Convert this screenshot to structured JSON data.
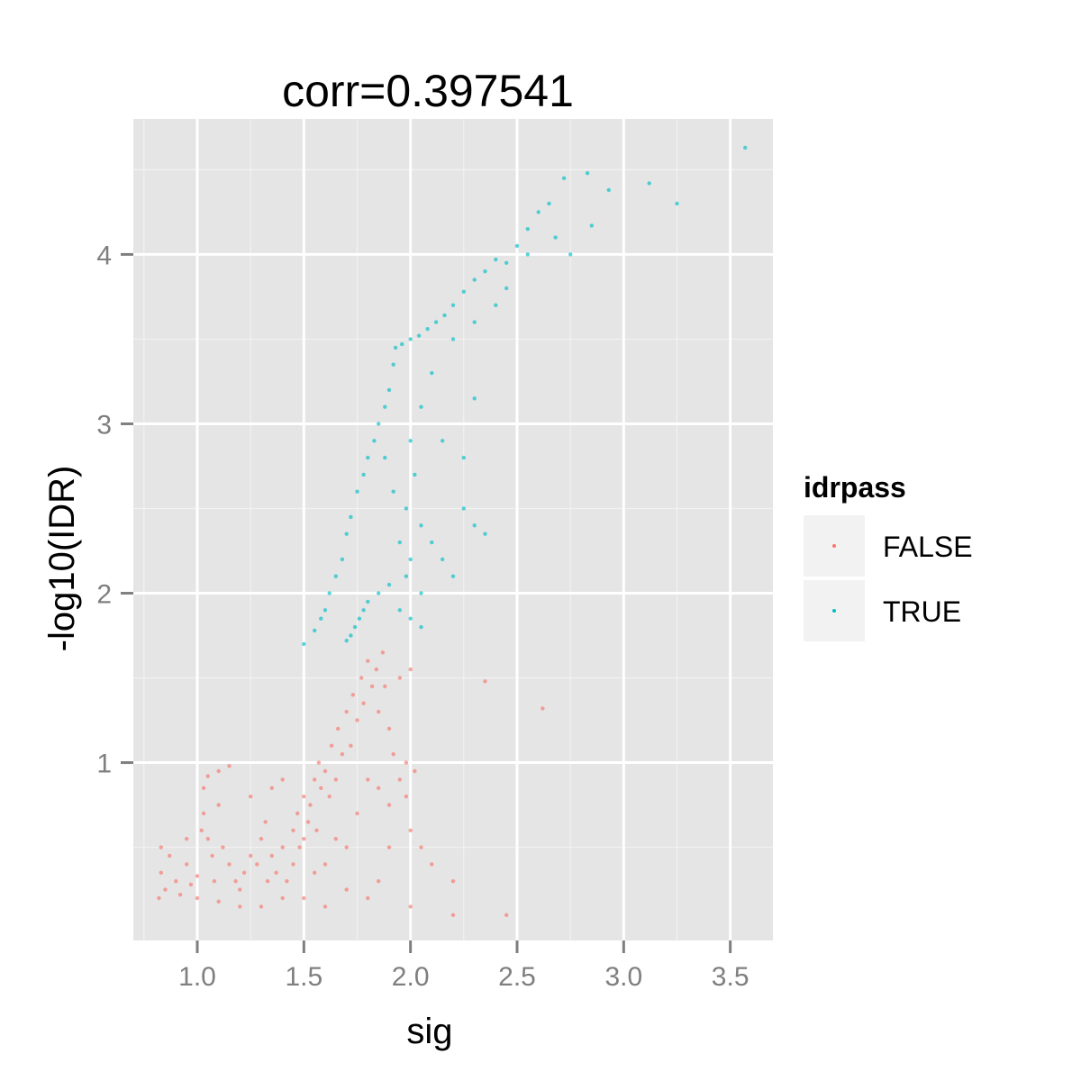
{
  "chart_data": {
    "type": "scatter",
    "title": "corr=0.397541",
    "xlabel": "sig",
    "ylabel": "-log10(IDR)",
    "xlim": [
      0.7,
      3.7
    ],
    "ylim": [
      -0.05,
      4.8
    ],
    "x_ticks": [
      1.0,
      1.5,
      2.0,
      2.5,
      3.0,
      3.5
    ],
    "x_tick_labels": [
      "1.0",
      "1.5",
      "2.0",
      "2.5",
      "3.0",
      "3.5"
    ],
    "y_ticks": [
      1,
      2,
      3,
      4
    ],
    "y_tick_labels": [
      "1",
      "2",
      "3",
      "4"
    ],
    "grid": true,
    "background": "#e5e5e5",
    "legend": {
      "title": "idrpass",
      "placement": "right",
      "entries": [
        {
          "label": "FALSE",
          "color": "#f8766d"
        },
        {
          "label": "TRUE",
          "color": "#00bfc4"
        }
      ]
    },
    "series": [
      {
        "name": "FALSE",
        "color": "#f8766d",
        "points": [
          [
            0.82,
            0.2
          ],
          [
            0.83,
            0.35
          ],
          [
            0.83,
            0.5
          ],
          [
            0.85,
            0.25
          ],
          [
            0.87,
            0.45
          ],
          [
            0.9,
            0.3
          ],
          [
            0.92,
            0.22
          ],
          [
            0.95,
            0.4
          ],
          [
            0.97,
            0.28
          ],
          [
            1.0,
            0.33
          ],
          [
            1.02,
            0.6
          ],
          [
            1.03,
            0.85
          ],
          [
            1.03,
            0.7
          ],
          [
            1.05,
            0.55
          ],
          [
            1.07,
            0.45
          ],
          [
            1.08,
            0.3
          ],
          [
            1.1,
            0.95
          ],
          [
            1.1,
            0.75
          ],
          [
            1.12,
            0.5
          ],
          [
            1.15,
            0.4
          ],
          [
            1.18,
            0.3
          ],
          [
            1.2,
            0.25
          ],
          [
            1.22,
            0.35
          ],
          [
            1.25,
            0.45
          ],
          [
            1.28,
            0.4
          ],
          [
            1.3,
            0.55
          ],
          [
            1.32,
            0.65
          ],
          [
            1.33,
            0.3
          ],
          [
            1.35,
            0.45
          ],
          [
            1.37,
            0.35
          ],
          [
            1.4,
            0.5
          ],
          [
            1.42,
            0.3
          ],
          [
            1.45,
            0.6
          ],
          [
            1.45,
            0.4
          ],
          [
            1.47,
            0.7
          ],
          [
            1.48,
            0.5
          ],
          [
            1.5,
            0.55
          ],
          [
            1.5,
            0.8
          ],
          [
            1.52,
            0.65
          ],
          [
            1.53,
            0.75
          ],
          [
            1.55,
            0.9
          ],
          [
            1.56,
            0.6
          ],
          [
            1.57,
            1.0
          ],
          [
            1.58,
            0.85
          ],
          [
            1.6,
            0.95
          ],
          [
            1.62,
            0.8
          ],
          [
            1.63,
            1.1
          ],
          [
            1.65,
            0.9
          ],
          [
            1.66,
            1.2
          ],
          [
            1.68,
            1.05
          ],
          [
            1.7,
            1.3
          ],
          [
            1.72,
            1.1
          ],
          [
            1.73,
            1.4
          ],
          [
            1.75,
            1.25
          ],
          [
            1.77,
            1.5
          ],
          [
            1.78,
            1.35
          ],
          [
            1.8,
            1.6
          ],
          [
            1.82,
            1.45
          ],
          [
            1.84,
            1.55
          ],
          [
            1.85,
            1.3
          ],
          [
            1.87,
            1.65
          ],
          [
            1.88,
            1.45
          ],
          [
            1.9,
            1.2
          ],
          [
            1.92,
            1.05
          ],
          [
            1.95,
            0.9
          ],
          [
            1.98,
            0.8
          ],
          [
            2.0,
            0.6
          ],
          [
            2.05,
            0.5
          ],
          [
            2.1,
            0.4
          ],
          [
            2.2,
            0.3
          ],
          [
            2.35,
            1.48
          ],
          [
            2.45,
            0.1
          ],
          [
            2.62,
            1.32
          ],
          [
            1.3,
            0.15
          ],
          [
            1.5,
            0.2
          ],
          [
            1.7,
            0.25
          ],
          [
            1.85,
            0.3
          ],
          [
            1.6,
            0.4
          ],
          [
            1.75,
            0.7
          ],
          [
            1.9,
            0.5
          ],
          [
            1.0,
            0.2
          ],
          [
            1.1,
            0.18
          ],
          [
            1.2,
            0.15
          ],
          [
            1.4,
            0.2
          ],
          [
            1.6,
            0.15
          ],
          [
            1.8,
            0.2
          ],
          [
            2.0,
            0.15
          ],
          [
            2.2,
            0.1
          ],
          [
            1.4,
            0.9
          ],
          [
            1.35,
            0.85
          ],
          [
            1.25,
            0.8
          ],
          [
            1.15,
            0.98
          ],
          [
            1.05,
            0.92
          ],
          [
            0.95,
            0.55
          ],
          [
            1.65,
            0.55
          ],
          [
            1.55,
            0.35
          ],
          [
            1.95,
            1.5
          ],
          [
            2.0,
            1.55
          ],
          [
            1.98,
            1.0
          ],
          [
            2.02,
            0.95
          ],
          [
            1.7,
            0.5
          ],
          [
            1.8,
            0.9
          ],
          [
            1.85,
            0.85
          ],
          [
            1.9,
            0.75
          ]
        ]
      },
      {
        "name": "TRUE",
        "color": "#00bfc4",
        "points": [
          [
            1.55,
            1.78
          ],
          [
            1.58,
            1.85
          ],
          [
            1.6,
            1.9
          ],
          [
            1.62,
            2.0
          ],
          [
            1.65,
            2.1
          ],
          [
            1.68,
            2.2
          ],
          [
            1.7,
            2.35
          ],
          [
            1.72,
            2.45
          ],
          [
            1.75,
            2.6
          ],
          [
            1.78,
            2.7
          ],
          [
            1.8,
            2.8
          ],
          [
            1.83,
            2.9
          ],
          [
            1.85,
            3.0
          ],
          [
            1.88,
            3.1
          ],
          [
            1.9,
            3.2
          ],
          [
            1.92,
            3.35
          ],
          [
            1.93,
            3.45
          ],
          [
            1.96,
            3.47
          ],
          [
            2.0,
            3.5
          ],
          [
            2.04,
            3.52
          ],
          [
            2.08,
            3.56
          ],
          [
            2.12,
            3.6
          ],
          [
            2.16,
            3.64
          ],
          [
            2.2,
            3.7
          ],
          [
            2.25,
            3.78
          ],
          [
            2.3,
            3.85
          ],
          [
            2.35,
            3.9
          ],
          [
            2.4,
            3.97
          ],
          [
            2.45,
            3.95
          ],
          [
            2.5,
            4.05
          ],
          [
            2.55,
            4.15
          ],
          [
            2.6,
            4.25
          ],
          [
            2.65,
            4.3
          ],
          [
            2.72,
            4.45
          ],
          [
            2.83,
            4.48
          ],
          [
            2.93,
            4.38
          ],
          [
            3.12,
            4.42
          ],
          [
            3.25,
            4.3
          ],
          [
            3.57,
            4.63
          ],
          [
            2.85,
            4.17
          ],
          [
            2.75,
            4.0
          ],
          [
            2.68,
            4.1
          ],
          [
            2.55,
            4.0
          ],
          [
            2.45,
            3.8
          ],
          [
            2.4,
            3.7
          ],
          [
            2.3,
            3.6
          ],
          [
            2.2,
            3.5
          ],
          [
            2.1,
            3.3
          ],
          [
            2.05,
            3.1
          ],
          [
            2.0,
            2.9
          ],
          [
            2.02,
            2.7
          ],
          [
            1.98,
            2.5
          ],
          [
            2.05,
            2.4
          ],
          [
            2.1,
            2.3
          ],
          [
            2.15,
            2.2
          ],
          [
            2.2,
            2.1
          ],
          [
            2.25,
            2.5
          ],
          [
            2.3,
            2.4
          ],
          [
            2.35,
            2.35
          ],
          [
            2.0,
            2.2
          ],
          [
            1.95,
            2.3
          ],
          [
            1.98,
            2.1
          ],
          [
            2.05,
            2.0
          ],
          [
            1.92,
            2.6
          ],
          [
            1.88,
            2.8
          ],
          [
            1.7,
            1.72
          ],
          [
            1.72,
            1.75
          ],
          [
            1.74,
            1.8
          ],
          [
            1.76,
            1.85
          ],
          [
            1.78,
            1.9
          ],
          [
            1.8,
            1.95
          ],
          [
            1.85,
            2.0
          ],
          [
            1.9,
            2.05
          ],
          [
            1.95,
            1.9
          ],
          [
            2.0,
            1.85
          ],
          [
            2.05,
            1.8
          ],
          [
            1.5,
            1.7
          ],
          [
            2.25,
            2.8
          ],
          [
            2.15,
            2.9
          ],
          [
            2.3,
            3.15
          ]
        ]
      }
    ]
  }
}
